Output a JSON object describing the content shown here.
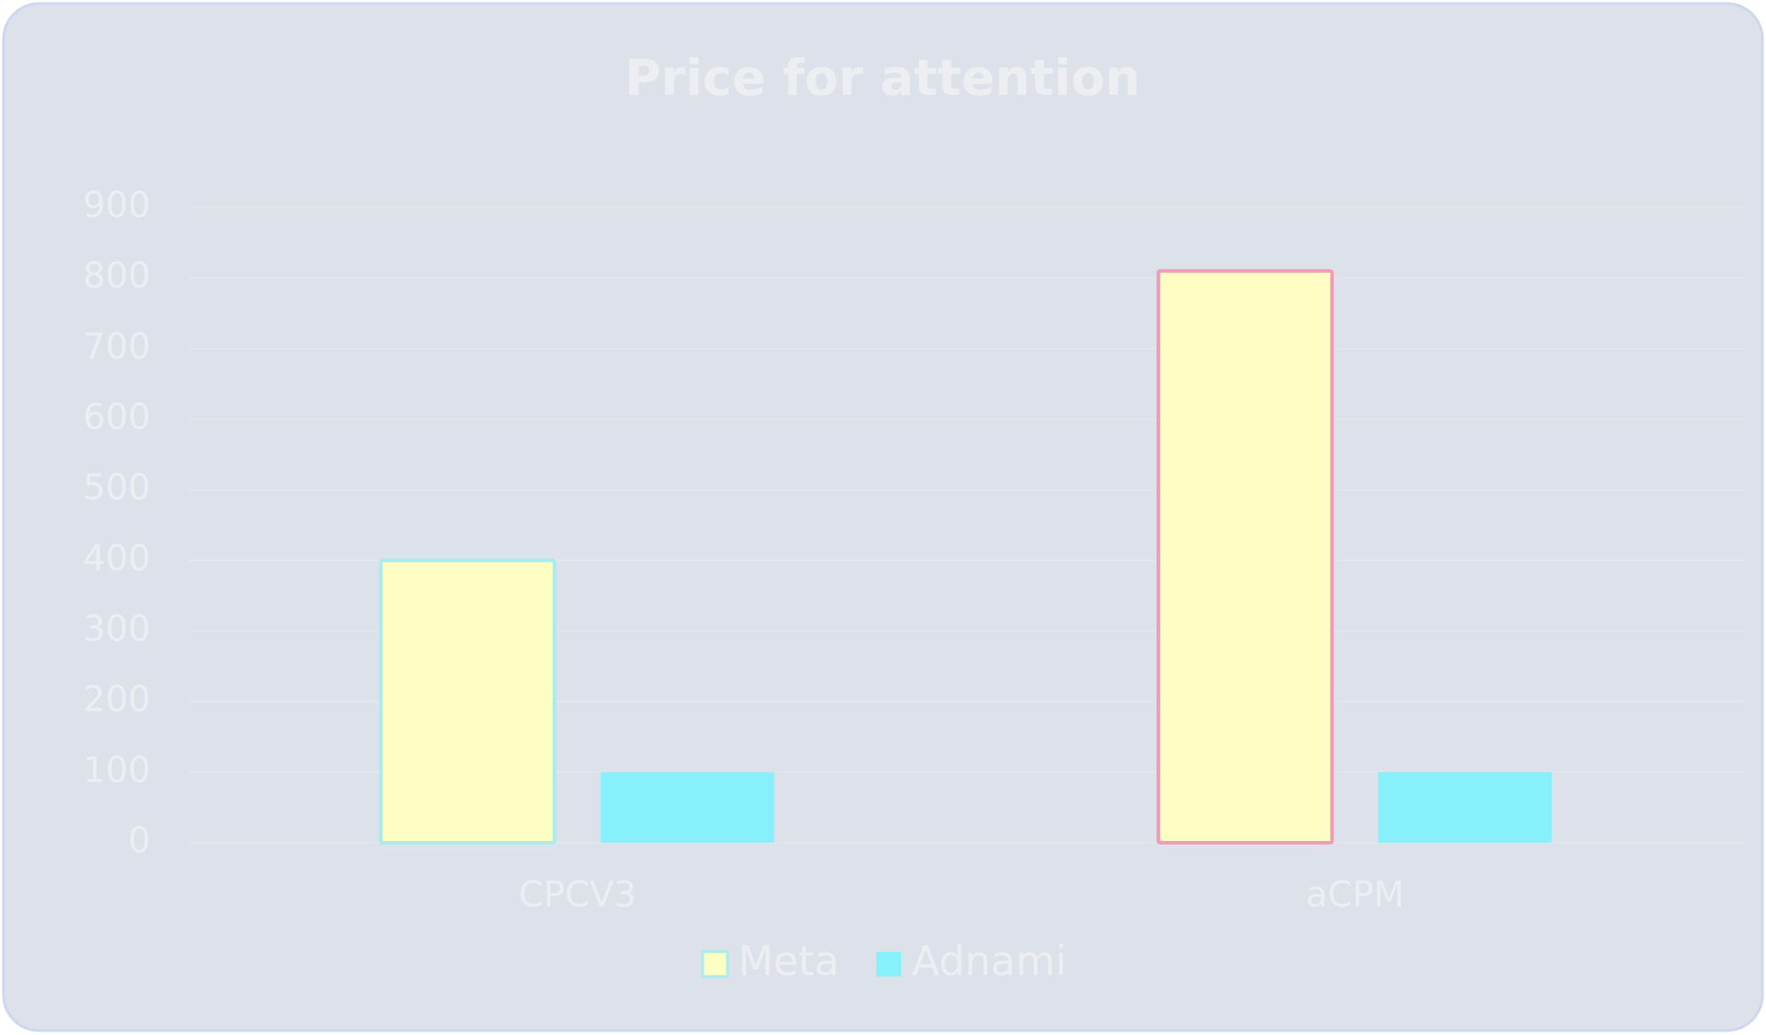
{
  "chart_data": {
    "type": "bar",
    "title": "Price for attention",
    "categories": [
      "CPCV3",
      "aCPM"
    ],
    "series": [
      {
        "name": "Meta",
        "color": "#fdfdc4",
        "border_colors": [
          "#a8ecec",
          "#f29bb5"
        ],
        "values": [
          400,
          810
        ]
      },
      {
        "name": "Adnami",
        "color": "#86f1fb",
        "values": [
          100,
          100
        ]
      }
    ],
    "ylim": [
      0,
      900
    ],
    "yticks": [
      0,
      100,
      200,
      300,
      400,
      500,
      600,
      700,
      800,
      900
    ],
    "grid": true,
    "legend": "bottom"
  }
}
